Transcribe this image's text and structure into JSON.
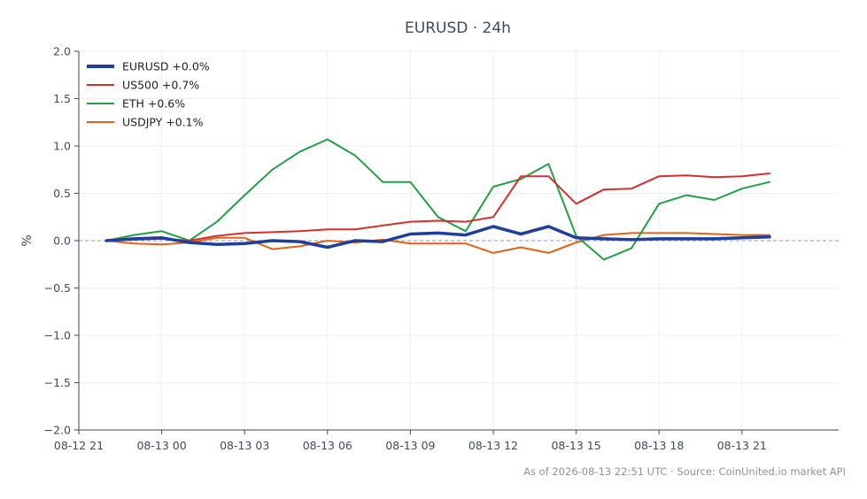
{
  "chart_data": {
    "type": "line",
    "title": "EURUSD · 24h",
    "xlabel": "",
    "ylabel": "%",
    "ylim": [
      -2.0,
      2.0
    ],
    "xlim_hours": [
      -3,
      24.5
    ],
    "grid": true,
    "legend_position": "top-left",
    "y_ticks": [
      "2.0",
      "1.5",
      "1.0",
      "0.5",
      "0.0",
      "−0.5",
      "−1.0",
      "−1.5",
      "−2.0"
    ],
    "x_ticks": [
      "08-12 21",
      "08-13 00",
      "08-13 03",
      "08-13 06",
      "08-13 09",
      "08-13 12",
      "08-13 15",
      "08-13 18",
      "08-13 21"
    ],
    "x_hours": [
      -2,
      -1,
      0,
      1,
      2,
      3,
      4,
      5,
      6,
      7,
      8,
      9,
      10,
      11,
      12,
      13,
      14,
      15,
      16,
      17,
      18,
      19,
      20,
      21,
      22
    ],
    "series": [
      {
        "name": "EURUSD +0.0%",
        "color": "#1f3f9a",
        "values": [
          0.0,
          0.02,
          0.03,
          -0.02,
          -0.04,
          -0.03,
          0.0,
          -0.01,
          -0.07,
          0.0,
          -0.01,
          0.07,
          0.08,
          0.06,
          0.15,
          0.07,
          0.15,
          0.03,
          0.02,
          0.01,
          0.02,
          0.02,
          0.02,
          0.03,
          0.04
        ]
      },
      {
        "name": "US500 +0.7%",
        "color": "#d32f2f",
        "values": [
          0.0,
          0.01,
          0.02,
          0.0,
          0.05,
          0.08,
          0.09,
          0.1,
          0.12,
          0.12,
          0.16,
          0.2,
          0.21,
          0.2,
          0.25,
          0.68,
          0.68,
          0.39,
          0.54,
          0.55,
          0.68,
          0.69,
          0.67,
          0.68,
          0.71
        ]
      },
      {
        "name": "ETH +0.6%",
        "color": "#23a046",
        "values": [
          0.0,
          0.06,
          0.1,
          0.0,
          0.2,
          0.48,
          0.75,
          0.94,
          1.07,
          0.9,
          0.62,
          0.62,
          0.25,
          0.1,
          0.57,
          0.65,
          0.81,
          0.05,
          -0.2,
          -0.08,
          0.39,
          0.48,
          0.43,
          0.55,
          0.62
        ]
      },
      {
        "name": "USDJPY +0.1%",
        "color": "#e0631a",
        "values": [
          0.0,
          -0.03,
          -0.04,
          -0.02,
          0.03,
          0.03,
          -0.09,
          -0.06,
          0.0,
          -0.02,
          0.01,
          -0.03,
          -0.03,
          -0.03,
          -0.13,
          -0.07,
          -0.13,
          -0.02,
          0.06,
          0.08,
          0.08,
          0.08,
          0.07,
          0.06,
          0.06
        ]
      }
    ]
  },
  "footer": "As of 2026-08-13 22:51 UTC · Source: CoinUnited.io market API"
}
